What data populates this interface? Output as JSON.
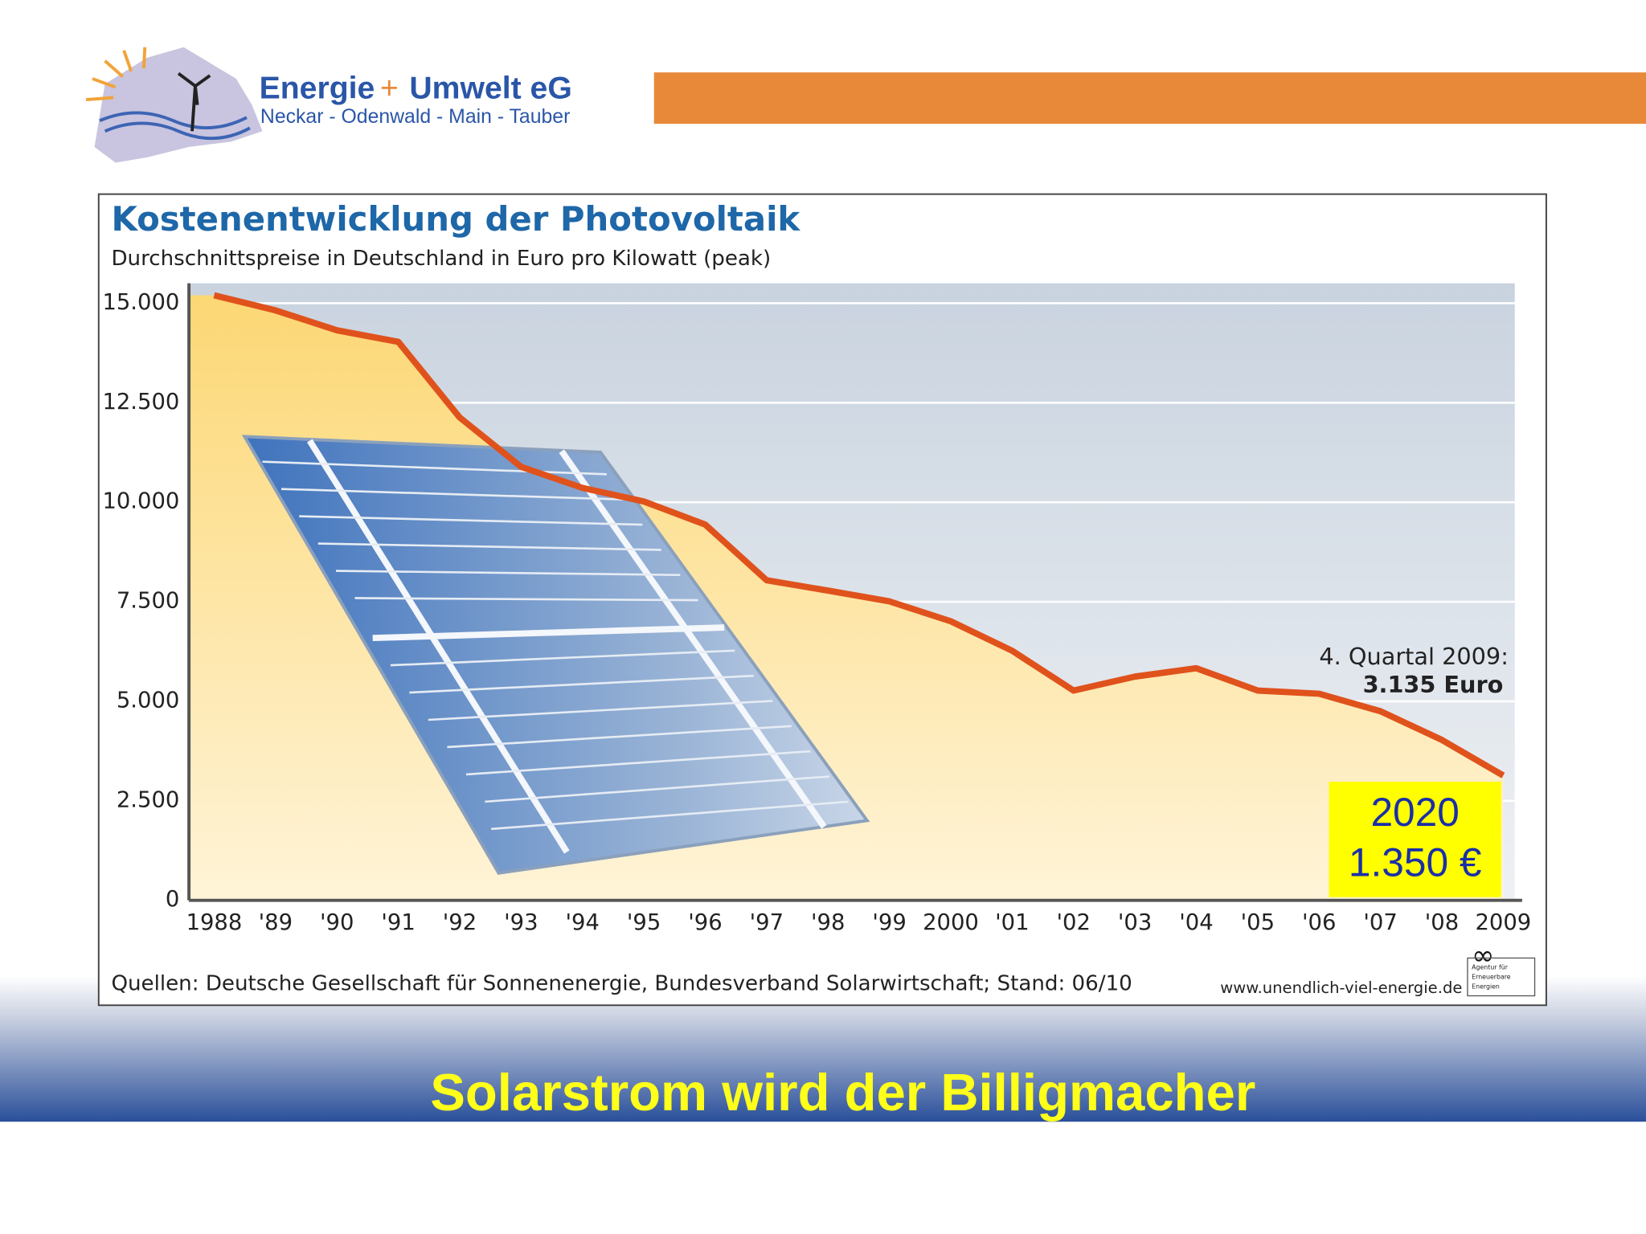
{
  "header": {
    "brand": "Energie",
    "plus": "+",
    "brand2": "Umwelt eG",
    "region": "Neckar - Odenwald - Main - Tauber"
  },
  "chart_data": {
    "type": "line",
    "title": "Kostenentwicklung der Photovoltaik",
    "subtitle": "Durchschnittspreise in Deutschland in Euro pro Kilowatt  (peak)",
    "categories": [
      "1988",
      "'89",
      "'90",
      "'91",
      "'92",
      "'93",
      "'94",
      "'95",
      "'96",
      "'97",
      "'98",
      "'99",
      "2000",
      "'01",
      "'02",
      "'03",
      "'04",
      "'05",
      "'06",
      "'07",
      "'08",
      "2009"
    ],
    "values": [
      15200,
      14820,
      14320,
      14030,
      12130,
      10890,
      10360,
      10020,
      9440,
      8040,
      7780,
      7510,
      7010,
      6270,
      5270,
      5620,
      5830,
      5270,
      5190,
      4750,
      4030,
      3135
    ],
    "color": "#e0521c",
    "ylim": [
      0,
      15500
    ],
    "yticks": [
      0,
      {
        "value": 2500,
        "label": "2.500"
      },
      {
        "value": 5000,
        "label": "5.000"
      },
      {
        "value": 7500,
        "label": "7.500"
      },
      {
        "value": 10000,
        "label": "10.000"
      },
      {
        "value": 12500,
        "label": "12.500"
      },
      {
        "value": 15000,
        "label": "15.000"
      }
    ],
    "grid": true,
    "annotations": [
      "4. Quartal 2009:",
      "3.135 Euro"
    ],
    "forecast": [
      "2020",
      "1.350 €"
    ],
    "source": "Quellen: Deutsche Gesellschaft für Sonnenenergie, Bundesverband Solarwirtschaft; Stand: 06/10",
    "url": "www.unendlich-viel-energie.de",
    "agency": [
      "Agentur für",
      "Erneuerbare",
      "Energien"
    ]
  },
  "footer": {
    "title": "Solarstrom wird der Billigmacher"
  }
}
